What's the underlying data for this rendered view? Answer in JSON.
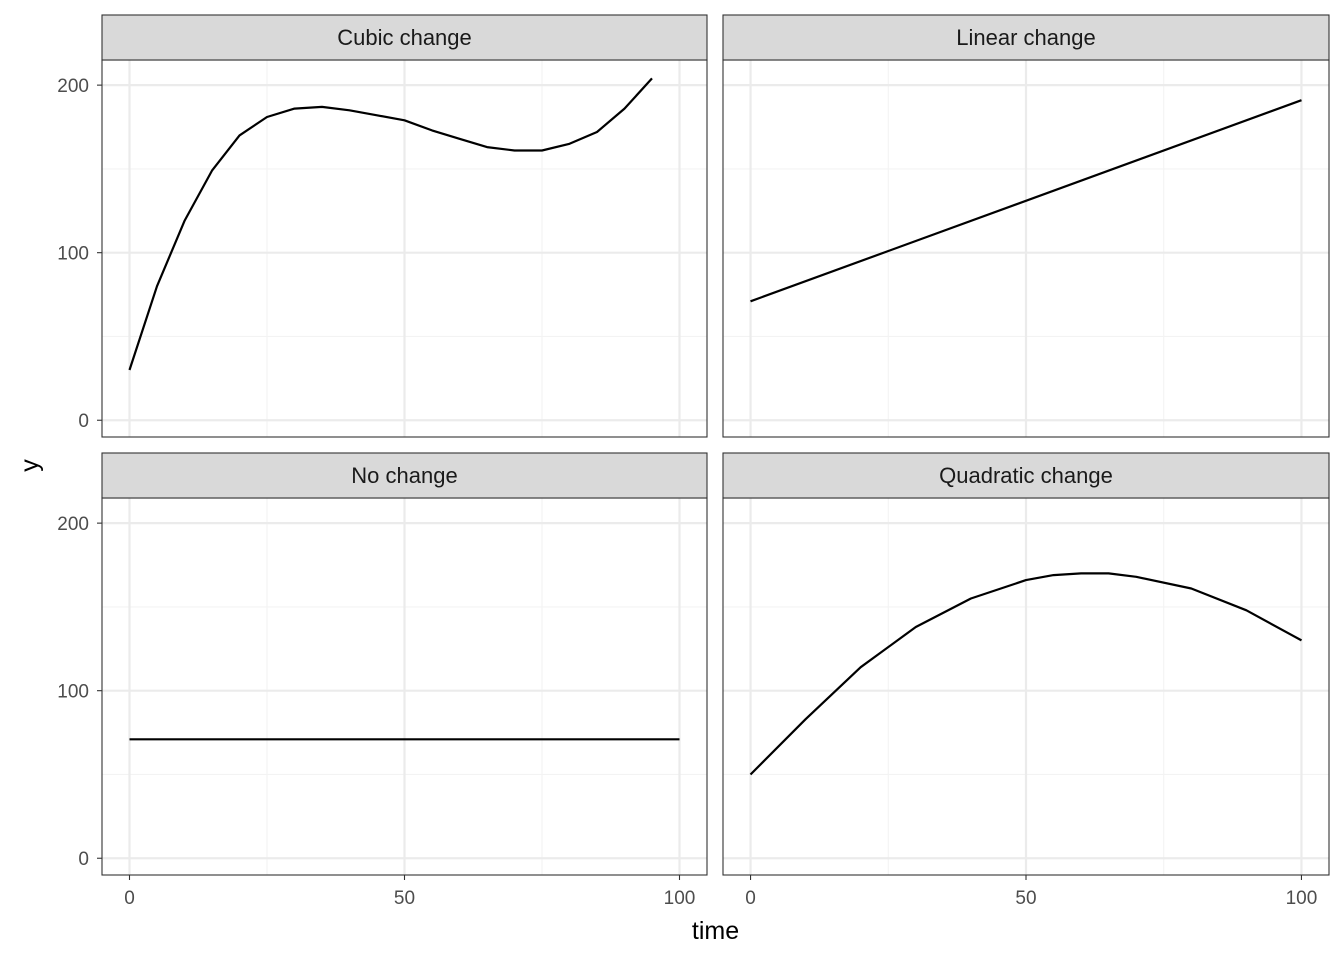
{
  "chart_data": {
    "type": "line",
    "layout": "facet_wrap 2x2",
    "xlabel": "time",
    "ylabel": "y",
    "xlim": [
      -5,
      105
    ],
    "ylim": [
      -10,
      215
    ],
    "x_ticks": [
      0,
      50,
      100
    ],
    "y_ticks": [
      0,
      100,
      200
    ],
    "x_ticks_minor": [
      25,
      75
    ],
    "y_ticks_minor": [
      50,
      150
    ],
    "grid": true,
    "legend": "none",
    "line_color": "#000000",
    "strip_fill": "#d9d9d9",
    "panels": [
      {
        "title": "Cubic change",
        "series": [
          {
            "x": [
              0,
              5,
              10,
              15,
              20,
              25,
              30,
              35,
              40,
              45,
              50,
              55,
              60,
              65,
              70,
              75,
              80,
              85,
              90,
              95
            ],
            "y": [
              30,
              80,
              119,
              149,
              170,
              181,
              186,
              187,
              185,
              182,
              179,
              173,
              168,
              163,
              161,
              161,
              165,
              172,
              186,
              204
            ]
          }
        ]
      },
      {
        "title": "Linear change",
        "series": [
          {
            "x": [
              0,
              100
            ],
            "y": [
              71,
              191
            ]
          }
        ]
      },
      {
        "title": "No change",
        "series": [
          {
            "x": [
              0,
              100
            ],
            "y": [
              71,
              71
            ]
          }
        ]
      },
      {
        "title": "Quadratic change",
        "series": [
          {
            "x": [
              0,
              10,
              20,
              30,
              40,
              50,
              55,
              60,
              65,
              70,
              80,
              90,
              100
            ],
            "y": [
              50,
              83,
              114,
              138,
              155,
              166,
              169,
              170,
              170,
              168,
              161,
              148,
              130
            ]
          }
        ]
      }
    ]
  }
}
